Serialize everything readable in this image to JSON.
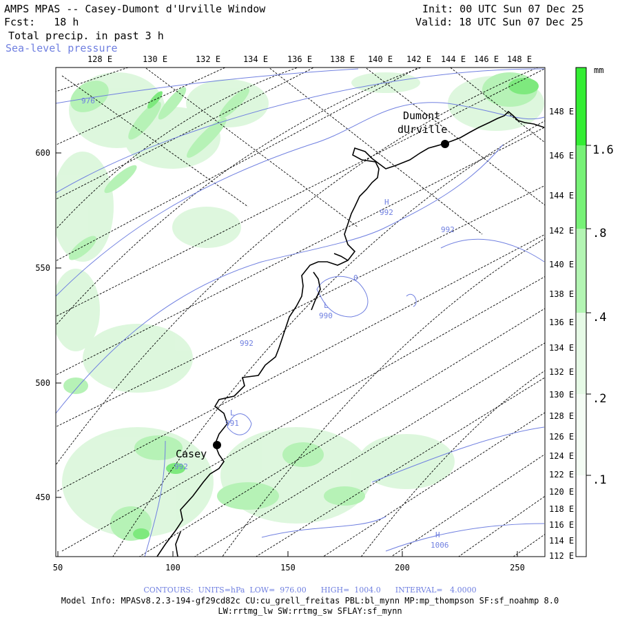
{
  "header": {
    "title": "AMPS MPAS -- Casey-Dumont d'Urville Window",
    "fcst": "Fcst:   18 h",
    "init": "Init: 00 UTC Sun 07 Dec 25",
    "valid": "Valid: 18 UTC Sun 07 Dec 25",
    "field1": "Total precip. in past 3 h",
    "field2": "Sea-level pressure"
  },
  "axes": {
    "top_lon_labels": [
      "128 E",
      "130 E",
      "132 E",
      "134 E",
      "136 E",
      "138 E",
      "140 E",
      "142 E",
      "144 E",
      "146 E",
      "148 E"
    ],
    "right_lon_labels": [
      "148 E",
      "146 E",
      "144 E",
      "142 E",
      "140 E",
      "138 E",
      "136 E",
      "134 E",
      "132 E",
      "130 E",
      "128 E",
      "126 E",
      "124 E",
      "122 E",
      "120 E",
      "118 E",
      "116 E",
      "114 E",
      "112 E"
    ],
    "left_ticks": [
      "600",
      "550",
      "500",
      "450"
    ],
    "bottom_ticks": [
      "50",
      "100",
      "150",
      "200",
      "250"
    ]
  },
  "colorbar": {
    "unit": "mm",
    "labels": [
      "1.6",
      ".8",
      ".4",
      ".2",
      ".1"
    ],
    "colors": [
      "#33ee33",
      "#77f277",
      "#b3f5b3",
      "#e6fae6",
      "#ffffff"
    ]
  },
  "places": {
    "dumont_line1": "Dumont",
    "dumont_line2": "dUrville",
    "casey": "Casey"
  },
  "contour_labels": {
    "c976": "976",
    "h_north": "H",
    "c992_north": "992",
    "c992_east": "992",
    "c0": "0",
    "l_mid": "L",
    "c990": "990",
    "c992_mid": "992",
    "l_casey": "L",
    "c991": "991",
    "c992_casey": "992",
    "h_south": "H",
    "c1006": "1006"
  },
  "footer": {
    "contours": "CONTOURS:  UNITS=hPa  LOW=  976.00      HIGH=  1004.0      INTERVAL=   4.0000",
    "model_info": "Model Info: MPASv8.2.3-194-gf29cd82c CU:cu_grell_freitas PBL:bl_mynn MP:mp_thompson SF:sf_noahmp 8.0",
    "model_info2": "LW:rrtmg_lw SW:rrtmg_sw SFLAY:sf_mynn"
  }
}
